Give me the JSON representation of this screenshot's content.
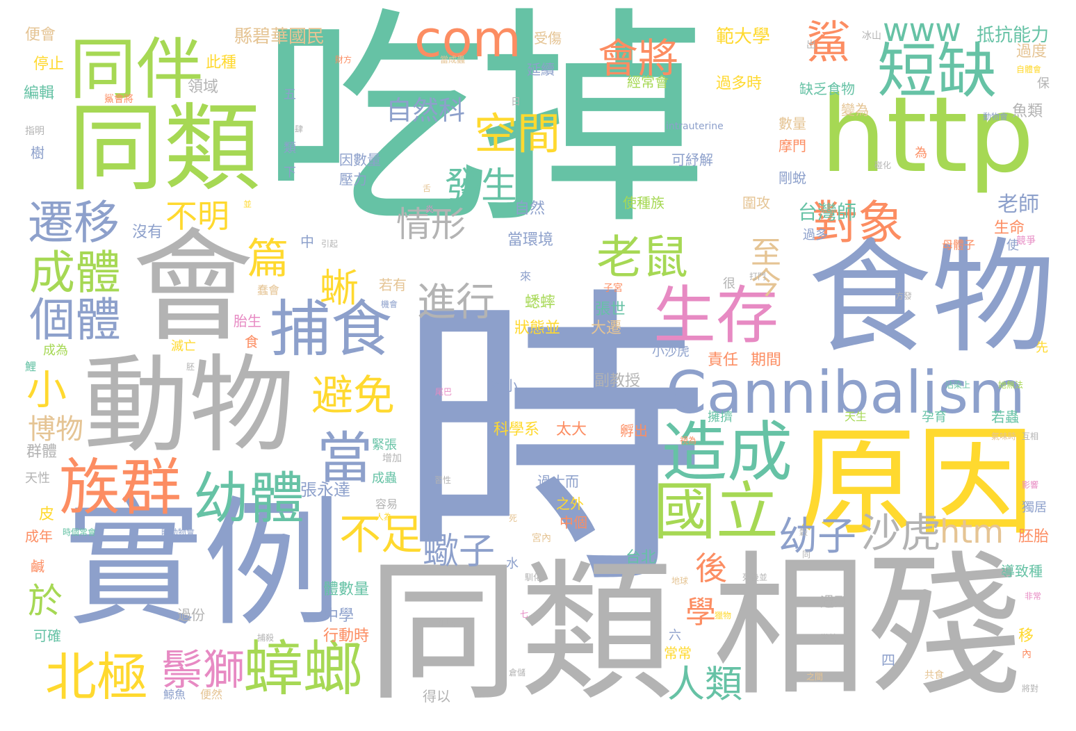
{
  "palette": {
    "teal": "#66c2a5",
    "orange": "#fc8d62",
    "blue": "#8da0cb",
    "pink": "#e78ac3",
    "green": "#a6d854",
    "yellow": "#ffd92f",
    "tan": "#e5c494",
    "gray": "#b3b3b3"
  },
  "words": [
    {
      "text": "吃掉",
      "color": "teal"
    },
    {
      "text": "時",
      "color": "blue"
    },
    {
      "text": "同類",
      "color": "gray"
    },
    {
      "text": "相殘",
      "color": "gray"
    },
    {
      "text": "實例",
      "color": "blue"
    },
    {
      "text": "食物",
      "color": "blue"
    },
    {
      "text": "原因",
      "color": "yellow"
    },
    {
      "text": "會",
      "color": "gray"
    },
    {
      "text": "動物",
      "color": "gray"
    },
    {
      "text": "http",
      "color": "green"
    },
    {
      "text": "同類",
      "color": "green"
    },
    {
      "text": "Cannibalism",
      "color": "blue"
    },
    {
      "text": "com",
      "color": "orange"
    },
    {
      "text": "同伴",
      "color": "green"
    },
    {
      "text": "短缺",
      "color": "teal"
    },
    {
      "text": "生存",
      "color": "pink"
    },
    {
      "text": "捕食",
      "color": "blue"
    },
    {
      "text": "造成",
      "color": "teal"
    },
    {
      "text": "國立",
      "color": "green"
    },
    {
      "text": "族群",
      "color": "orange"
    },
    {
      "text": "幼體",
      "color": "teal"
    },
    {
      "text": "當",
      "color": "blue"
    },
    {
      "text": "蟑螂",
      "color": "green"
    },
    {
      "text": "北極",
      "color": "yellow"
    },
    {
      "text": "鬃獅",
      "color": "pink"
    },
    {
      "text": "老鼠",
      "color": "green"
    },
    {
      "text": "對象",
      "color": "orange"
    },
    {
      "text": "遷移",
      "color": "blue"
    },
    {
      "text": "成體",
      "color": "green"
    },
    {
      "text": "個體",
      "color": "blue"
    },
    {
      "text": "空間",
      "color": "yellow"
    },
    {
      "text": "會將",
      "color": "orange"
    },
    {
      "text": "進行",
      "color": "gray"
    },
    {
      "text": "避免",
      "color": "yellow"
    },
    {
      "text": "不足",
      "color": "yellow"
    },
    {
      "text": "蠍子",
      "color": "blue"
    },
    {
      "text": "沙虎",
      "color": "gray"
    },
    {
      "text": "幼子",
      "color": "blue"
    },
    {
      "text": "htm",
      "color": "tan"
    },
    {
      "text": "人類",
      "color": "teal"
    },
    {
      "text": "www",
      "color": "teal"
    },
    {
      "text": "鯊",
      "color": "orange"
    },
    {
      "text": "發生",
      "color": "teal"
    },
    {
      "text": "情形",
      "color": "gray"
    },
    {
      "text": "自然科",
      "color": "blue"
    },
    {
      "text": "不明",
      "color": "yellow"
    },
    {
      "text": "篇",
      "color": "yellow"
    },
    {
      "text": "至今",
      "color": "tan"
    },
    {
      "text": "小",
      "color": "yellow"
    },
    {
      "text": "蜥",
      "color": "yellow"
    },
    {
      "text": "後",
      "color": "orange"
    },
    {
      "text": "學",
      "color": "orange"
    },
    {
      "text": "於",
      "color": "green"
    },
    {
      "text": "博物",
      "color": "tan"
    },
    {
      "text": "縣碧華國民",
      "color": "tan"
    },
    {
      "text": "範大學",
      "color": "yellow"
    },
    {
      "text": "抵抗能力",
      "color": "teal"
    },
    {
      "text": "台灣師",
      "color": "teal"
    },
    {
      "text": "老師",
      "color": "blue"
    },
    {
      "text": "張永達",
      "color": "blue"
    },
    {
      "text": "便會",
      "color": "tan"
    },
    {
      "text": "停止",
      "color": "yellow"
    },
    {
      "text": "編輯",
      "color": "teal"
    },
    {
      "text": "此種",
      "color": "yellow"
    },
    {
      "text": "領域",
      "color": "gray"
    },
    {
      "text": "受傷",
      "color": "tan"
    },
    {
      "text": "延續",
      "color": "blue"
    },
    {
      "text": "經常會",
      "color": "green"
    },
    {
      "text": "過多時",
      "color": "yellow"
    },
    {
      "text": "缺乏食物",
      "color": "teal"
    },
    {
      "text": "過度",
      "color": "tan"
    },
    {
      "text": "數量",
      "color": "tan"
    },
    {
      "text": "變為",
      "color": "tan"
    },
    {
      "text": "魚類",
      "color": "gray"
    },
    {
      "text": "可紓解",
      "color": "blue"
    },
    {
      "text": "摩門",
      "color": "orange"
    },
    {
      "text": "因數量",
      "color": "blue"
    },
    {
      "text": "壓力",
      "color": "blue"
    },
    {
      "text": "剛蛻",
      "color": "blue"
    },
    {
      "text": "使種族",
      "color": "green"
    },
    {
      "text": "圍攻",
      "color": "tan"
    },
    {
      "text": "生命",
      "color": "orange"
    },
    {
      "text": "沒有",
      "color": "blue"
    },
    {
      "text": "中",
      "color": "blue"
    },
    {
      "text": "自然",
      "color": "blue"
    },
    {
      "text": "當環境",
      "color": "blue"
    },
    {
      "text": "過多",
      "color": "blue"
    },
    {
      "text": "母體子",
      "color": "orange"
    },
    {
      "text": "若有",
      "color": "tan"
    },
    {
      "text": "蟋蟀",
      "color": "green"
    },
    {
      "text": "張世",
      "color": "teal"
    },
    {
      "text": "狀態並",
      "color": "yellow"
    },
    {
      "text": "大遷",
      "color": "tan"
    },
    {
      "text": "胎生",
      "color": "pink"
    },
    {
      "text": "滅亡",
      "color": "yellow"
    },
    {
      "text": "成為",
      "color": "green"
    },
    {
      "text": "食",
      "color": "orange"
    },
    {
      "text": "小沙虎",
      "color": "blue"
    },
    {
      "text": "責任",
      "color": "orange"
    },
    {
      "text": "期間",
      "color": "orange"
    },
    {
      "text": "副教授",
      "color": "gray"
    },
    {
      "text": "幼小",
      "color": "blue"
    },
    {
      "text": "擁擠",
      "color": "teal"
    },
    {
      "text": "天生",
      "color": "green"
    },
    {
      "text": "孕育",
      "color": "teal"
    },
    {
      "text": "若蟲",
      "color": "teal"
    },
    {
      "text": "科學系",
      "color": "yellow"
    },
    {
      "text": "太大",
      "color": "orange"
    },
    {
      "text": "孵出",
      "color": "orange"
    },
    {
      "text": "群體",
      "color": "gray"
    },
    {
      "text": "緊張",
      "color": "teal"
    },
    {
      "text": "成蟲",
      "color": "teal"
    },
    {
      "text": "過大而",
      "color": "blue"
    },
    {
      "text": "之外",
      "color": "yellow"
    },
    {
      "text": "容易",
      "color": "gray"
    },
    {
      "text": "中個",
      "color": "orange"
    },
    {
      "text": "台北",
      "color": "teal"
    },
    {
      "text": "胚胎",
      "color": "orange"
    },
    {
      "text": "獨居",
      "color": "blue"
    },
    {
      "text": "導致種",
      "color": "teal"
    },
    {
      "text": "皮",
      "color": "yellow"
    },
    {
      "text": "成年",
      "color": "orange"
    },
    {
      "text": "天性",
      "color": "gray"
    },
    {
      "text": "鹹",
      "color": "orange"
    },
    {
      "text": "可確",
      "color": "teal"
    },
    {
      "text": "過份",
      "color": "gray"
    },
    {
      "text": "體數量",
      "color": "teal"
    },
    {
      "text": "中學",
      "color": "blue"
    },
    {
      "text": "行動時",
      "color": "orange"
    },
    {
      "text": "遇到",
      "color": "gray"
    },
    {
      "text": "常常",
      "color": "yellow"
    },
    {
      "text": "六",
      "color": "blue"
    },
    {
      "text": "四",
      "color": "blue"
    },
    {
      "text": "得以",
      "color": "gray"
    },
    {
      "text": "移",
      "color": "yellow"
    },
    {
      "text": "水",
      "color": "blue"
    },
    {
      "text": "五",
      "color": "blue"
    },
    {
      "text": "類",
      "color": "blue"
    },
    {
      "text": "下",
      "color": "blue"
    },
    {
      "text": "鯨魚",
      "color": "blue"
    },
    {
      "text": "便然",
      "color": "tan"
    },
    {
      "text": "intrauterine",
      "color": "blue"
    },
    {
      "text": "為",
      "color": "orange"
    },
    {
      "text": "保",
      "color": "gray"
    },
    {
      "text": "先",
      "color": "yellow"
    },
    {
      "text": "使",
      "color": "blue"
    },
    {
      "text": "很",
      "color": "gray"
    },
    {
      "text": "樹",
      "color": "blue"
    },
    {
      "text": "內",
      "color": "orange"
    },
    {
      "text": "出",
      "color": "gray"
    },
    {
      "text": "日",
      "color": "gray"
    },
    {
      "text": "來",
      "color": "blue"
    },
    {
      "text": "增加",
      "color": "gray"
    },
    {
      "text": "鯉",
      "color": "teal"
    },
    {
      "text": "冰山",
      "color": "gray"
    },
    {
      "text": "競爭",
      "color": "pink"
    },
    {
      "text": "增加",
      "color": "yellow"
    },
    {
      "text": "宮內",
      "color": "tan"
    },
    {
      "text": "獵物",
      "color": "yellow"
    },
    {
      "text": "共食",
      "color": "tan"
    },
    {
      "text": "指明",
      "color": "gray"
    },
    {
      "text": "鯊會將",
      "color": "orange"
    },
    {
      "text": "當成蟲",
      "color": "tan"
    },
    {
      "text": "尾巴",
      "color": "pink"
    },
    {
      "text": "子宮",
      "color": "orange"
    },
    {
      "text": "打鬥",
      "color": "gray"
    },
    {
      "text": "方發",
      "color": "gray"
    },
    {
      "text": "蠢會",
      "color": "tan"
    },
    {
      "text": "機會",
      "color": "blue"
    },
    {
      "text": "引起",
      "color": "gray"
    },
    {
      "text": "互相",
      "color": "gray"
    },
    {
      "text": "影響",
      "color": "pink"
    },
    {
      "text": "將對",
      "color": "gray"
    },
    {
      "text": "之間",
      "color": "tan"
    },
    {
      "text": "當其",
      "color": "gray"
    },
    {
      "text": "時個常會",
      "color": "teal"
    },
    {
      "text": "時動物會",
      "color": "blue"
    },
    {
      "text": "死後並",
      "color": "gray"
    },
    {
      "text": "穀",
      "color": "gray"
    },
    {
      "text": "地球",
      "color": "tan"
    },
    {
      "text": "加以",
      "color": "gray"
    },
    {
      "text": "捕殺",
      "color": "gray"
    },
    {
      "text": "七",
      "color": "pink"
    },
    {
      "text": "倉儲",
      "color": "gray"
    },
    {
      "text": "氣味時",
      "color": "tan"
    },
    {
      "text": "她無法",
      "color": "green"
    },
    {
      "text": "沾染上",
      "color": "teal"
    },
    {
      "text": "習性",
      "color": "gray"
    },
    {
      "text": "人為",
      "color": "yellow"
    },
    {
      "text": "死",
      "color": "tan"
    },
    {
      "text": "同",
      "color": "gray"
    },
    {
      "text": "馴化",
      "color": "gray"
    },
    {
      "text": "非常",
      "color": "pink"
    },
    {
      "text": "動物會",
      "color": "blue"
    },
    {
      "text": "碰化",
      "color": "gray"
    },
    {
      "text": "自體會",
      "color": "yellow"
    },
    {
      "text": "胚",
      "color": "gray"
    },
    {
      "text": "視為",
      "color": "orange"
    },
    {
      "text": "財方",
      "color": "orange"
    },
    {
      "text": "肆",
      "color": "gray"
    },
    {
      "text": "舌",
      "color": "tan"
    },
    {
      "text": "炎",
      "color": "pink"
    },
    {
      "text": "並",
      "color": "yellow"
    },
    {
      "text": "鯉",
      "color": "gray"
    }
  ]
}
